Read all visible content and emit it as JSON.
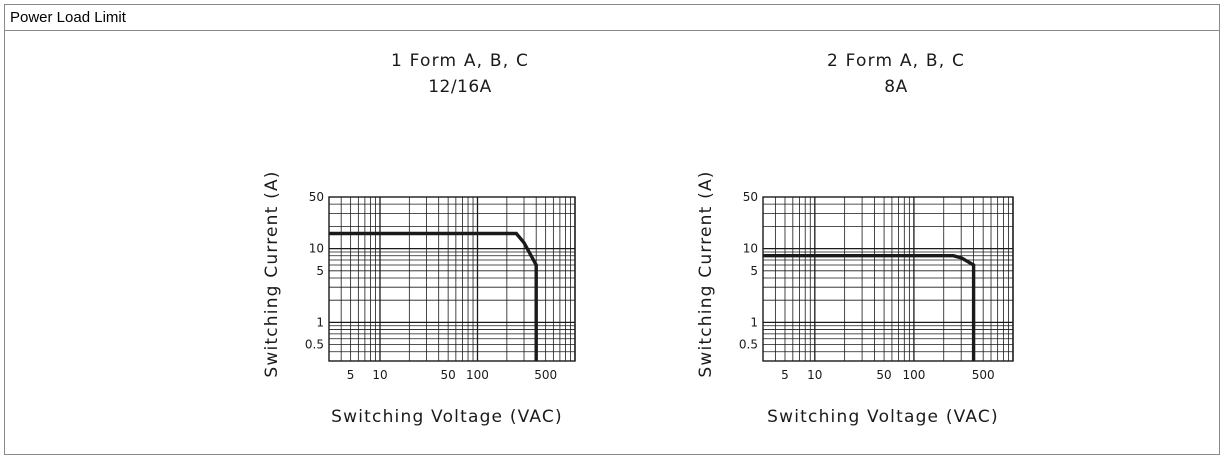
{
  "header": {
    "title": "Power Load Limit"
  },
  "chart_data": [
    {
      "type": "line",
      "title": "1 Form A, B, C",
      "subtitle": "12/16A",
      "xlabel": "Switching Voltage (VAC)",
      "ylabel": "Switching Current (A)",
      "xscale": "log",
      "yscale": "log",
      "xlim": [
        3,
        1000
      ],
      "ylim": [
        0.3,
        50
      ],
      "grid": true,
      "x_ticks": [
        5,
        10,
        50,
        100,
        500
      ],
      "x_tick_labels": [
        "5",
        "10",
        "50",
        "100",
        "500"
      ],
      "y_ticks": [
        0.5,
        1,
        5,
        10,
        50
      ],
      "y_tick_labels": [
        "0.5",
        "1",
        "5",
        "10",
        "50"
      ],
      "series": [
        {
          "x": [
            3,
            250,
            300,
            400,
            400
          ],
          "y": [
            16,
            16,
            12,
            6,
            0.3
          ]
        }
      ]
    },
    {
      "type": "line",
      "title": "2 Form A, B, C",
      "subtitle": "8A",
      "xlabel": "Switching Voltage (VAC)",
      "ylabel": "Switching Current (A)",
      "xscale": "log",
      "yscale": "log",
      "xlim": [
        3,
        1000
      ],
      "ylim": [
        0.3,
        50
      ],
      "grid": true,
      "x_ticks": [
        5,
        10,
        50,
        100,
        500
      ],
      "x_tick_labels": [
        "5",
        "10",
        "50",
        "100",
        "500"
      ],
      "y_ticks": [
        0.5,
        1,
        5,
        10,
        50
      ],
      "y_tick_labels": [
        "0.5",
        "1",
        "5",
        "10",
        "50"
      ],
      "series": [
        {
          "x": [
            3,
            250,
            300,
            400,
            400
          ],
          "y": [
            8,
            8,
            7.5,
            6,
            0.3
          ]
        }
      ]
    }
  ]
}
